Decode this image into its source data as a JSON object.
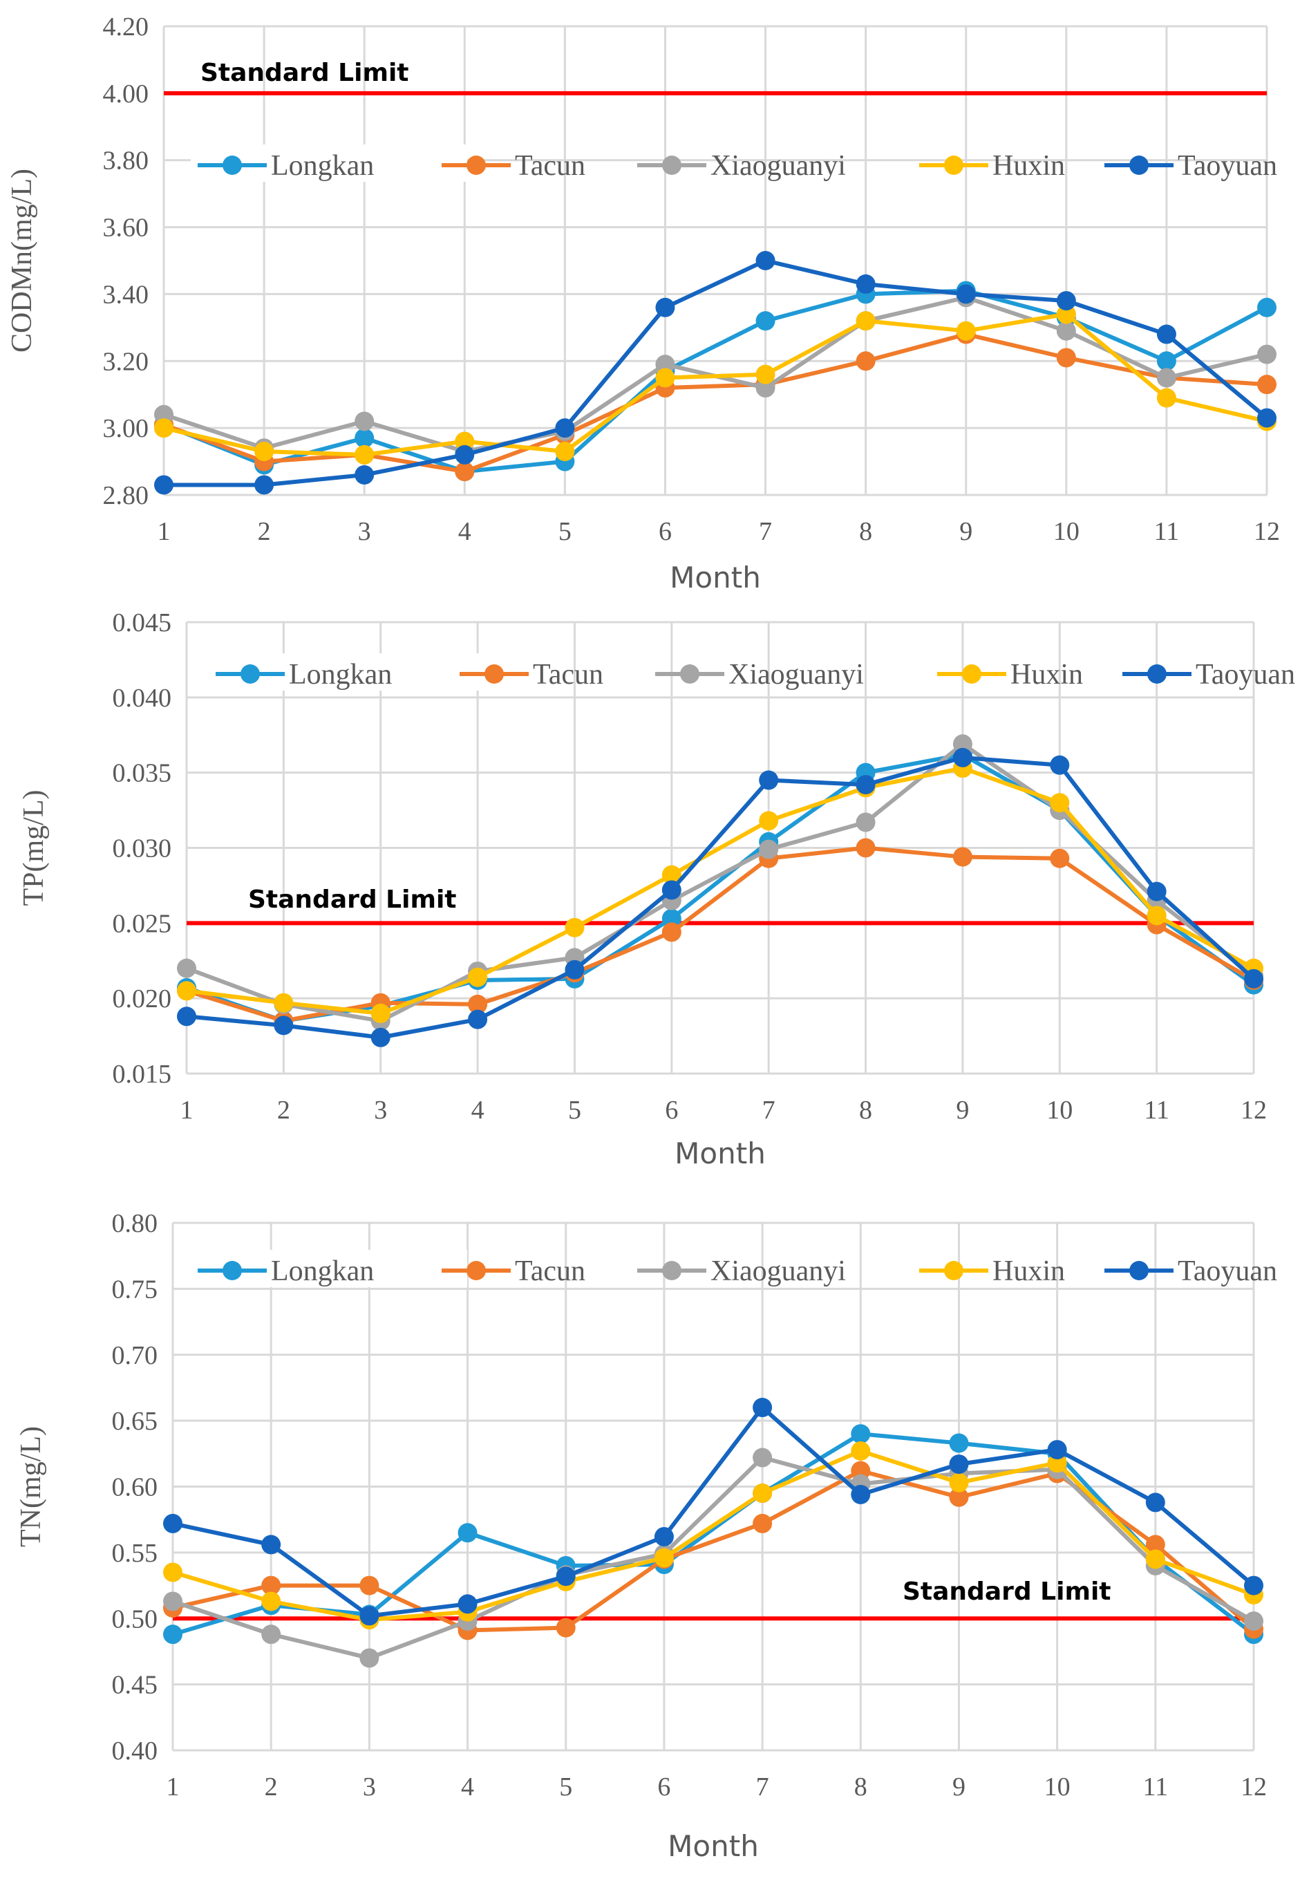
{
  "chart_data": [
    {
      "type": "line",
      "title": "",
      "xlabel": "Month",
      "ylabel": "CODMn(mg/L)",
      "x": [
        1,
        2,
        3,
        4,
        5,
        6,
        7,
        8,
        9,
        10,
        11,
        12
      ],
      "x_ticks": [
        "1",
        "2",
        "3",
        "4",
        "5",
        "6",
        "7",
        "8",
        "9",
        "10",
        "11",
        "12"
      ],
      "ylim": [
        2.8,
        4.2
      ],
      "y_ticks": [
        "2.80",
        "3.00",
        "3.20",
        "3.40",
        "3.60",
        "3.80",
        "4.00",
        "4.20"
      ],
      "grid": true,
      "legend_placement": "top",
      "standard_limit": {
        "label": "Standard Limit",
        "value": 4.0,
        "color": "#ff0000"
      },
      "series": [
        {
          "name": "Longkan",
          "color": "#1f9ad6",
          "values": [
            3.01,
            2.89,
            2.97,
            2.87,
            2.9,
            3.17,
            3.32,
            3.4,
            3.41,
            3.33,
            3.2,
            3.36
          ]
        },
        {
          "name": "Tacun",
          "color": "#f07b2a",
          "values": [
            3.01,
            2.9,
            2.92,
            2.87,
            2.98,
            3.12,
            3.13,
            3.2,
            3.28,
            3.21,
            3.15,
            3.13
          ]
        },
        {
          "name": "Xiaoguanyi",
          "color": "#a5a5a5",
          "values": [
            3.04,
            2.94,
            3.02,
            2.93,
            2.99,
            3.19,
            3.12,
            3.32,
            3.39,
            3.29,
            3.15,
            3.22
          ]
        },
        {
          "name": "Huxin",
          "color": "#ffc000",
          "values": [
            3.0,
            2.93,
            2.92,
            2.96,
            2.93,
            3.15,
            3.16,
            3.32,
            3.29,
            3.34,
            3.09,
            3.02
          ]
        },
        {
          "name": "Taoyuan",
          "color": "#1565c0",
          "values": [
            2.83,
            2.83,
            2.86,
            2.92,
            3.0,
            3.36,
            3.5,
            3.43,
            3.4,
            3.38,
            3.28,
            3.03
          ]
        }
      ]
    },
    {
      "type": "line",
      "title": "",
      "xlabel": "Month",
      "ylabel": "TP(mg/L)",
      "x": [
        1,
        2,
        3,
        4,
        5,
        6,
        7,
        8,
        9,
        10,
        11,
        12
      ],
      "x_ticks": [
        "1",
        "2",
        "3",
        "4",
        "5",
        "6",
        "7",
        "8",
        "9",
        "10",
        "11",
        "12"
      ],
      "ylim": [
        0.015,
        0.045
      ],
      "y_ticks": [
        "0.015",
        "0.020",
        "0.025",
        "0.030",
        "0.035",
        "0.040",
        "0.045"
      ],
      "grid": true,
      "legend_placement": "top",
      "standard_limit": {
        "label": "Standard Limit",
        "value": 0.025,
        "color": "#ff0000"
      },
      "series": [
        {
          "name": "Longkan",
          "color": "#1f9ad6",
          "values": [
            0.0207,
            0.0185,
            0.0195,
            0.0212,
            0.0213,
            0.0253,
            0.0304,
            0.035,
            0.0362,
            0.0325,
            0.0255,
            0.0209
          ]
        },
        {
          "name": "Tacun",
          "color": "#f07b2a",
          "values": [
            0.0205,
            0.0185,
            0.0197,
            0.0196,
            0.0217,
            0.0244,
            0.0293,
            0.03,
            0.0294,
            0.0293,
            0.0249,
            0.0212
          ]
        },
        {
          "name": "Xiaoguanyi",
          "color": "#a5a5a5",
          "values": [
            0.022,
            0.0196,
            0.0185,
            0.0218,
            0.0227,
            0.0265,
            0.0299,
            0.0317,
            0.0369,
            0.0325,
            0.0265,
            0.0215
          ]
        },
        {
          "name": "Huxin",
          "color": "#ffc000",
          "values": [
            0.0205,
            0.0197,
            0.019,
            0.0214,
            0.0247,
            0.0282,
            0.0318,
            0.034,
            0.0353,
            0.033,
            0.0255,
            0.022
          ]
        },
        {
          "name": "Taoyuan",
          "color": "#1565c0",
          "values": [
            0.0188,
            0.0182,
            0.0174,
            0.0186,
            0.0219,
            0.0272,
            0.0345,
            0.0342,
            0.036,
            0.0355,
            0.0271,
            0.0213
          ]
        }
      ]
    },
    {
      "type": "line",
      "title": "",
      "xlabel": "Month",
      "ylabel": "TN(mg/L)",
      "x": [
        1,
        2,
        3,
        4,
        5,
        6,
        7,
        8,
        9,
        10,
        11,
        12
      ],
      "x_ticks": [
        "1",
        "2",
        "3",
        "4",
        "5",
        "6",
        "7",
        "8",
        "9",
        "10",
        "11",
        "12"
      ],
      "ylim": [
        0.4,
        0.8
      ],
      "y_ticks": [
        "0.40",
        "0.45",
        "0.50",
        "0.55",
        "0.60",
        "0.65",
        "0.70",
        "0.75",
        "0.80"
      ],
      "grid": true,
      "legend_placement": "top",
      "standard_limit": {
        "label": "Standard Limit",
        "value": 0.5,
        "color": "#ff0000"
      },
      "series": [
        {
          "name": "Longkan",
          "color": "#1f9ad6",
          "values": [
            0.488,
            0.51,
            0.503,
            0.565,
            0.54,
            0.541,
            0.595,
            0.64,
            0.633,
            0.625,
            0.545,
            0.488
          ]
        },
        {
          "name": "Tacun",
          "color": "#f07b2a",
          "values": [
            0.508,
            0.525,
            0.525,
            0.491,
            0.493,
            0.545,
            0.572,
            0.612,
            0.592,
            0.61,
            0.556,
            0.492
          ]
        },
        {
          "name": "Xiaoguanyi",
          "color": "#a5a5a5",
          "values": [
            0.513,
            0.488,
            0.47,
            0.498,
            0.533,
            0.549,
            0.622,
            0.602,
            0.61,
            0.613,
            0.54,
            0.498
          ]
        },
        {
          "name": "Huxin",
          "color": "#ffc000",
          "values": [
            0.535,
            0.513,
            0.499,
            0.505,
            0.528,
            0.546,
            0.595,
            0.627,
            0.603,
            0.618,
            0.545,
            0.518
          ]
        },
        {
          "name": "Taoyuan",
          "color": "#1565c0",
          "values": [
            0.572,
            0.556,
            0.502,
            0.511,
            0.532,
            0.562,
            0.66,
            0.594,
            0.617,
            0.628,
            0.588,
            0.525
          ]
        }
      ]
    }
  ]
}
